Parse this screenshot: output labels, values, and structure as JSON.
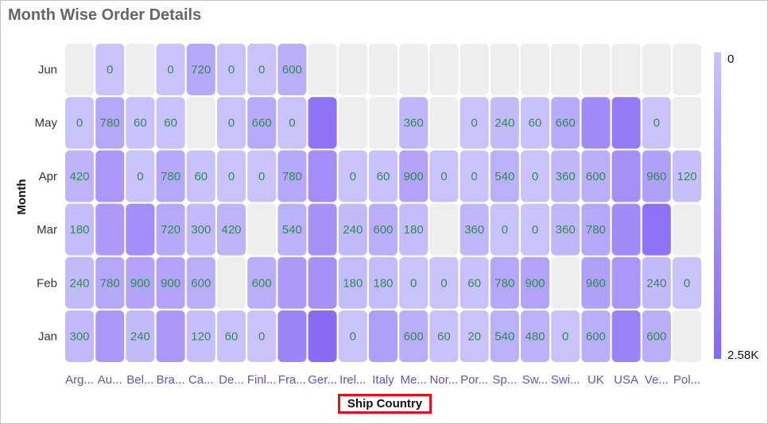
{
  "title": "Month Wise Order Details",
  "colors": {
    "low": "#cac3fb",
    "high": "#8467f4",
    "empty": "#eeeeee",
    "label": "#2e8b57",
    "xtitle_border": "#e0121a"
  },
  "chart_data": {
    "type": "heatmap",
    "title": "Month Wise Order Details",
    "xlabel": "Ship Country",
    "ylabel": "Month",
    "x_labels": [
      "Arg...",
      "Au...",
      "Bel...",
      "Bra...",
      "Ca...",
      "De...",
      "Finl...",
      "Fra...",
      "Ger...",
      "Irel...",
      "Italy",
      "Me...",
      "Nor...",
      "Por...",
      "Sp...",
      "Sw...",
      "Swi...",
      "UK",
      "USA",
      "Ve...",
      "Pol..."
    ],
    "y_labels": [
      "Jun",
      "May",
      "Apr",
      "Mar",
      "Feb",
      "Jan"
    ],
    "value_range": [
      0,
      2580
    ],
    "legend": {
      "position": "right",
      "min_label": "0",
      "max_label": "2.58K"
    },
    "values": [
      [
        null,
        0,
        null,
        0,
        720,
        0,
        0,
        600,
        null,
        null,
        null,
        null,
        null,
        null,
        null,
        null,
        null,
        null,
        null,
        null,
        null
      ],
      [
        0,
        780,
        60,
        60,
        null,
        0,
        660,
        0,
        2220,
        null,
        null,
        360,
        null,
        0,
        240,
        60,
        660,
        1560,
        2000,
        0,
        null
      ],
      [
        420,
        1200,
        0,
        780,
        60,
        0,
        0,
        780,
        1500,
        0,
        60,
        900,
        0,
        0,
        540,
        0,
        360,
        600,
        1400,
        960,
        120
      ],
      [
        180,
        1140,
        1500,
        720,
        300,
        420,
        null,
        540,
        1380,
        240,
        600,
        180,
        null,
        360,
        0,
        0,
        360,
        780,
        1560,
        2280,
        null
      ],
      [
        240,
        780,
        900,
        900,
        600,
        null,
        600,
        1100,
        1380,
        180,
        180,
        0,
        0,
        60,
        780,
        900,
        null,
        960,
        1200,
        240,
        0
      ],
      [
        300,
        1200,
        240,
        1200,
        120,
        60,
        0,
        1700,
        2450,
        0,
        1020,
        600,
        60,
        20,
        540,
        480,
        0,
        600,
        1800,
        600,
        null
      ]
    ],
    "shown_labels": [
      [
        null,
        "0",
        null,
        "0",
        "720",
        "0",
        "0",
        "600",
        null,
        null,
        null,
        null,
        null,
        null,
        null,
        null,
        null,
        null,
        null,
        null,
        null
      ],
      [
        "0",
        "780",
        "60",
        "60",
        null,
        "0",
        "660",
        "0",
        null,
        null,
        null,
        "360",
        null,
        "0",
        "240",
        "60",
        "660",
        null,
        null,
        "0",
        null
      ],
      [
        "420",
        null,
        "0",
        "780",
        "60",
        "0",
        "0",
        "780",
        null,
        "0",
        "60",
        "900",
        "0",
        "0",
        "540",
        "0",
        "360",
        "600",
        null,
        "960",
        "120"
      ],
      [
        "180",
        null,
        null,
        "720",
        "300",
        "420",
        null,
        "540",
        null,
        "240",
        "600",
        "180",
        null,
        "360",
        "0",
        "0",
        "360",
        "780",
        null,
        null,
        null
      ],
      [
        "240",
        "780",
        "900",
        "900",
        "600",
        null,
        "600",
        null,
        null,
        "180",
        "180",
        "0",
        "0",
        "60",
        "780",
        "900",
        null,
        "960",
        null,
        "240",
        "0"
      ],
      [
        "300",
        null,
        "240",
        null,
        "120",
        "60",
        "0",
        null,
        null,
        "0",
        null,
        "600",
        "60",
        "20",
        "540",
        "480",
        "0",
        "600",
        null,
        "600",
        null
      ]
    ]
  }
}
